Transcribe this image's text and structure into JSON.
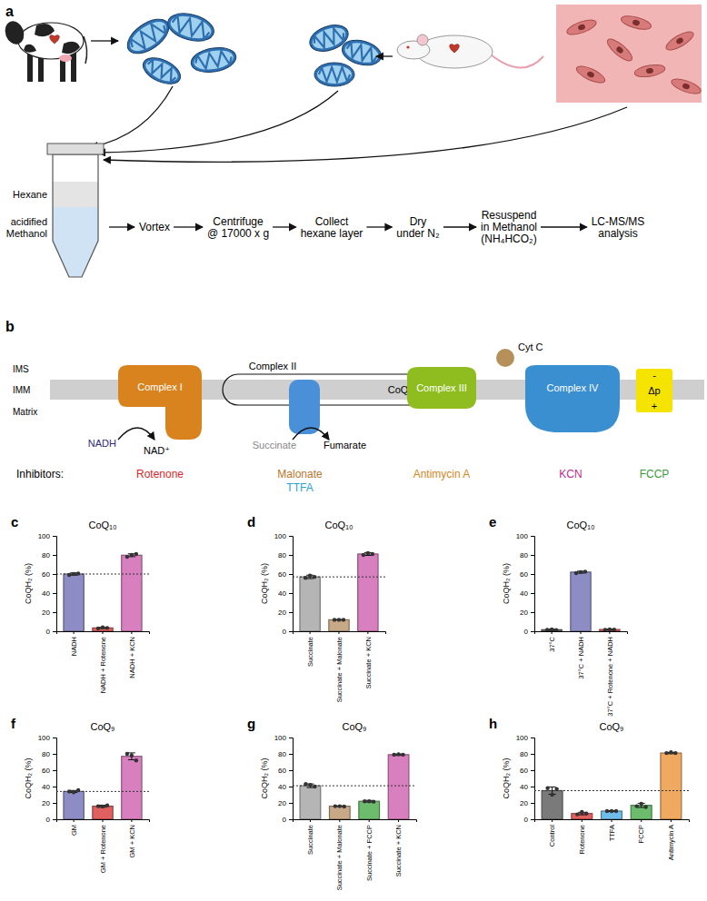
{
  "panel_a": {
    "label": "a",
    "tube_labels": {
      "top": "Hexane",
      "bottom": [
        "acidified",
        "Methanol"
      ]
    },
    "steps": [
      [
        "Vortex"
      ],
      [
        "Centrifuge",
        "@ 17000 x g"
      ],
      [
        "Collect",
        "hexane layer"
      ],
      [
        "Dry",
        "under N₂"
      ],
      [
        "Resuspend",
        "in Methanol",
        "(NH₄HCO₂)"
      ],
      [
        "LC-MS/MS",
        "analysis"
      ]
    ]
  },
  "panel_b": {
    "label": "b",
    "compartments": [
      "IMS",
      "IMM",
      "Matrix"
    ],
    "complexes": [
      "Complex I",
      "Complex II",
      "Complex III",
      "Complex IV"
    ],
    "coq": "CoQ",
    "cyt_c": "Cyt C",
    "delta_p": [
      "-",
      "Δp",
      "+"
    ],
    "substrates": {
      "nadh": "NADH",
      "nad": "NAD⁺",
      "succinate": "Succinate",
      "fumarate": "Fumarate"
    },
    "inhibitors_label": "Inhibitors:",
    "inhibitors": [
      {
        "name": "Rotenone",
        "color": "#d62728"
      },
      {
        "name": "Malonate",
        "color": "#b8762a"
      },
      {
        "name": "TTFA",
        "color": "#2a9fd6"
      },
      {
        "name": "Antimycin A",
        "color": "#d2891f"
      },
      {
        "name": "KCN",
        "color": "#c02b8f"
      },
      {
        "name": "FCCP",
        "color": "#3a9a3a"
      }
    ]
  },
  "chart_data": [
    {
      "panel": "c",
      "type": "bar",
      "title": "CoQ₁₀",
      "y_label": "CoQH₂ (%)",
      "categories": [
        "NADH",
        "NADH + Rotenone",
        "NADH + KCN"
      ],
      "values": [
        60,
        3.5,
        79.7
      ],
      "errors": [
        1.2,
        0.5,
        1.5
      ],
      "points": [
        [
          59,
          60,
          60.5
        ],
        [
          3,
          4,
          3.5
        ],
        [
          78,
          80,
          81
        ]
      ],
      "reference_line": 60,
      "colors": [
        "#8e8cc4",
        "#e0605f",
        "#d77fbf"
      ],
      "ylim": [
        0,
        100
      ],
      "yticks": [
        0,
        20,
        40,
        60,
        80,
        100
      ]
    },
    {
      "panel": "d",
      "type": "bar",
      "title": "CoQ₁₀",
      "y_label": "CoQH₂ (%)",
      "categories": [
        "Succinate",
        "Succinate + Malonate",
        "Succinate + KCN"
      ],
      "values": [
        57,
        12,
        81
      ],
      "errors": [
        1.8,
        0.3,
        1.5
      ],
      "points": [
        [
          56,
          58.5,
          57
        ],
        [
          12,
          12,
          12
        ],
        [
          80,
          82,
          81
        ]
      ],
      "reference_line": 57,
      "colors": [
        "#b5b5b5",
        "#c7a987",
        "#d77fbf"
      ],
      "ylim": [
        0,
        100
      ],
      "yticks": [
        0,
        20,
        40,
        60,
        80,
        100
      ]
    },
    {
      "panel": "e",
      "type": "bar",
      "title": "CoQ₁₀",
      "y_label": "CoQH₂ (%)",
      "categories": [
        "37°C",
        "37°C + NADH",
        "37°C + Rotenone + NADH"
      ],
      "values": [
        1.6,
        62,
        1.8
      ],
      "errors": [
        0.5,
        1,
        0.4
      ],
      "points": [
        [
          1.5,
          2,
          1.2
        ],
        [
          61,
          62,
          62.5
        ],
        [
          1.5,
          2,
          1.8
        ]
      ],
      "colors": [
        "#6f6f6f",
        "#8e8cc4",
        "#e0605f"
      ],
      "ylim": [
        0,
        100
      ],
      "yticks": [
        0,
        20,
        40,
        60,
        80,
        100
      ]
    },
    {
      "panel": "f",
      "type": "bar",
      "title": "CoQ₉",
      "y_label": "CoQH₂ (%)",
      "categories": [
        "GM",
        "GM + Rotenone",
        "GM + KCN"
      ],
      "values": [
        34,
        16,
        77
      ],
      "errors": [
        1.2,
        1.2,
        4.2
      ],
      "points": [
        [
          34,
          33,
          35.5
        ],
        [
          16,
          15.5,
          17
        ],
        [
          80,
          78,
          72
        ]
      ],
      "reference_line": 34,
      "colors": [
        "#8e8cc4",
        "#e0605f",
        "#d77fbf"
      ],
      "ylim": [
        0,
        100
      ],
      "yticks": [
        0,
        20,
        40,
        60,
        80,
        100
      ]
    },
    {
      "panel": "g",
      "type": "bar",
      "title": "CoQ₉",
      "y_label": "CoQH₂ (%)",
      "categories": [
        "Succinate",
        "Succinate + Malonate",
        "Succinate + FCCP",
        "Succinate + KCN"
      ],
      "values": [
        41,
        16,
        22,
        79
      ],
      "errors": [
        2.2,
        0.4,
        1,
        0.8
      ],
      "points": [
        [
          43,
          42,
          40
        ],
        [
          16,
          16,
          15.5
        ],
        [
          22,
          22,
          21.5
        ],
        [
          79,
          79.5,
          79
        ]
      ],
      "reference_line": 41,
      "colors": [
        "#b5b5b5",
        "#c7a987",
        "#6dbb6d",
        "#d77fbf"
      ],
      "ylim": [
        0,
        100
      ],
      "yticks": [
        0,
        20,
        40,
        60,
        80,
        100
      ]
    },
    {
      "panel": "h",
      "type": "bar",
      "title": "CoQ₉",
      "y_label": "CoQH₂ (%)",
      "categories": [
        "Control",
        "Rotenone",
        "TTFA",
        "FCCP",
        "Antimycin A"
      ],
      "values": [
        35,
        7,
        10,
        17,
        81
      ],
      "errors": [
        4.5,
        1.5,
        0.5,
        2.5,
        0.8
      ],
      "points": [
        [
          38,
          30,
          37
        ],
        [
          6,
          9,
          7
        ],
        [
          10,
          10,
          10
        ],
        [
          16,
          19,
          15
        ],
        [
          81,
          82,
          81
        ]
      ],
      "reference_line": 35,
      "colors": [
        "#7a7a7a",
        "#e0605f",
        "#6fbde8",
        "#6dbb6d",
        "#f0a960"
      ],
      "ylim": [
        0,
        100
      ],
      "yticks": [
        0,
        20,
        40,
        60,
        80,
        100
      ]
    }
  ]
}
